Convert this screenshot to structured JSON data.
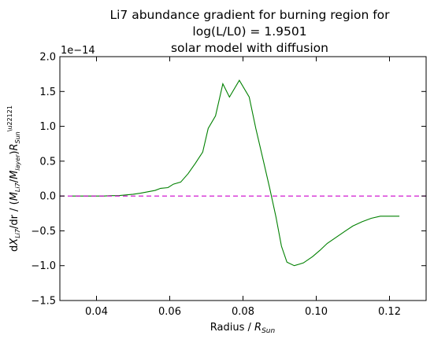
{
  "chart_data": {
    "type": "line",
    "title_lines": [
      "Li7 abundance gradient for burning region for",
      "log(L/L0) = 1.9501",
      "solar model with diffusion"
    ],
    "xlabel": "Radius / R_Sun",
    "ylabel": "dX_Li7/dr / (M_Li7/M_layer)R_Sun^-1",
    "offset_text": "1e−14",
    "xlim": [
      0.03,
      0.13
    ],
    "ylim": [
      -1.5,
      2.0
    ],
    "x_ticks": [
      0.04,
      0.06,
      0.08,
      0.1,
      0.12
    ],
    "x_tick_labels": [
      "0.04",
      "0.06",
      "0.08",
      "0.10",
      "0.12"
    ],
    "y_ticks": [
      -1.5,
      -1.0,
      -0.5,
      0.0,
      0.5,
      1.0,
      1.5,
      2.0
    ],
    "y_tick_labels": [
      "−1.5",
      "−1.0",
      "−0.5",
      "0.0",
      "0.5",
      "1.0",
      "1.5",
      "2.0"
    ],
    "series": [
      {
        "color": "#008000",
        "style": "solid",
        "x": [
          0.0333,
          0.036,
          0.038,
          0.04,
          0.042,
          0.044,
          0.046,
          0.048,
          0.05,
          0.052,
          0.054,
          0.056,
          0.0575,
          0.0595,
          0.061,
          0.063,
          0.065,
          0.067,
          0.069,
          0.0705,
          0.0725,
          0.0745,
          0.0763,
          0.079,
          0.0817,
          0.0835,
          0.0855,
          0.0873,
          0.089,
          0.0905,
          0.092,
          0.094,
          0.0965,
          0.099,
          0.101,
          0.103,
          0.1055,
          0.108,
          0.11,
          0.1125,
          0.115,
          0.1175,
          0.12,
          0.1227
        ],
        "y": [
          0.0,
          0.0,
          0.0,
          0.0,
          0.0,
          0.005,
          0.005,
          0.015,
          0.025,
          0.04,
          0.06,
          0.08,
          0.11,
          0.12,
          0.17,
          0.2,
          0.32,
          0.47,
          0.63,
          0.97,
          1.15,
          1.61,
          1.42,
          1.66,
          1.42,
          0.97,
          0.52,
          0.11,
          -0.3,
          -0.72,
          -0.95,
          -1.0,
          -0.96,
          -0.87,
          -0.78,
          -0.68,
          -0.59,
          -0.5,
          -0.43,
          -0.37,
          -0.32,
          -0.29,
          -0.29,
          -0.29
        ]
      },
      {
        "color": "#cc00cc",
        "style": "dashed",
        "x": [
          0.03,
          0.13
        ],
        "y": [
          0.0,
          0.0
        ]
      }
    ]
  }
}
